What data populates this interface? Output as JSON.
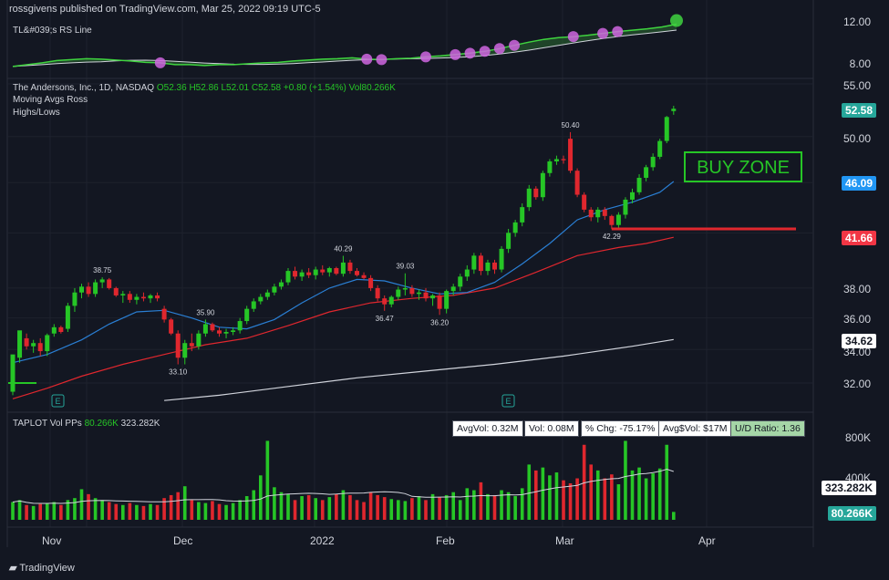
{
  "publish_line": "rossgivens published on TradingView.com, Mar 25, 2022 09:19 UTC-5",
  "rs_pane": {
    "label": "TL&#039;s RS Line",
    "axis_ticks": [
      "12.00",
      "8.00"
    ]
  },
  "main_pane": {
    "symbol_line": "The Andersons, Inc., 1D, NASDAQ",
    "ohlc": {
      "o": "O52.36",
      "h": "H52.86",
      "l": "L52.01",
      "c": "C52.58",
      "chg": "+0.80 (+1.54%)",
      "vol": "Vol80.266K"
    },
    "indicator1": "Moving Avgs Ross",
    "indicator2": "Highs/Lows",
    "axis_ticks": [
      "55.00",
      "50.00",
      "38.00",
      "36.00",
      "34.00",
      "32.00"
    ],
    "buy_zone_label": "BUY ZONE",
    "price_badges": [
      {
        "value": "52.58",
        "bg": "#26a69a",
        "fg": "#ffffff"
      },
      {
        "value": "46.09",
        "bg": "#2196f3",
        "fg": "#ffffff"
      },
      {
        "value": "41.66",
        "bg": "#f23645",
        "fg": "#ffffff"
      },
      {
        "value": "34.62",
        "bg": "#ffffff",
        "fg": "#131722"
      }
    ],
    "annotations": [
      "38.75",
      "35.90",
      "33.10",
      "40.29",
      "39.03",
      "36.47",
      "36.20",
      "50.40",
      "42.29"
    ]
  },
  "volume_pane": {
    "label": "TAPLOT Vol PPs",
    "vol_value": "80.266K",
    "avg_value": "323.282K",
    "stats": [
      "AvgVol: 0.32M",
      "Vol: 0.08M",
      "% Chg: -75.17%",
      "Avg$Vol: $17M",
      "U/D Ratio: 1.36"
    ],
    "axis_ticks": [
      "800K",
      "400K"
    ],
    "badges": [
      {
        "value": "323.282K",
        "bg": "#ffffff",
        "fg": "#131722"
      },
      {
        "value": "80.266K",
        "bg": "#26a69a",
        "fg": "#ffffff"
      }
    ]
  },
  "x_axis": [
    "Nov",
    "Dec",
    "2022",
    "Feb",
    "Mar",
    "Apr"
  ],
  "footer": "TradingView",
  "colors": {
    "up": "#26c626",
    "down": "#e0272e",
    "ma_short": "#2a7fd4",
    "ma_long": "#e0272e",
    "ma_200": "#d1d4dc",
    "rs": "#3fd43f",
    "rs_dot": "#d066e0",
    "bg": "#131722"
  },
  "chart_data": {
    "type": "candlestick",
    "ylim": [
      30.5,
      55.5
    ],
    "y_scale": "log",
    "buy_zone_line": 42.3,
    "candles": [
      [
        31.5,
        31.3,
        32.8,
        33.7
      ],
      [
        33.5,
        33.2,
        34.8,
        35.2
      ],
      [
        34.7,
        34.0,
        35.0,
        34.2
      ],
      [
        34.2,
        33.8,
        34.6,
        34.4
      ],
      [
        34.4,
        33.6,
        34.7,
        33.9
      ],
      [
        33.9,
        33.6,
        35.0,
        34.9
      ],
      [
        35.0,
        34.8,
        35.6,
        35.4
      ],
      [
        35.4,
        35.0,
        35.5,
        35.1
      ],
      [
        35.3,
        35.1,
        37.0,
        36.8
      ],
      [
        36.8,
        36.4,
        38.0,
        37.7
      ],
      [
        37.7,
        37.3,
        38.3,
        38.1
      ],
      [
        38.1,
        37.4,
        38.4,
        37.6
      ],
      [
        37.6,
        37.4,
        38.6,
        38.4
      ],
      [
        38.4,
        38.0,
        38.75,
        38.6
      ],
      [
        38.6,
        37.9,
        38.7,
        38.0
      ],
      [
        38.0,
        37.4,
        38.1,
        37.5
      ],
      [
        37.5,
        37.0,
        37.8,
        37.6
      ],
      [
        37.6,
        37.0,
        37.8,
        37.2
      ],
      [
        37.2,
        36.9,
        37.6,
        37.4
      ],
      [
        37.4,
        37.1,
        37.7,
        37.3
      ],
      [
        37.3,
        37.0,
        37.6,
        37.5
      ],
      [
        37.5,
        37.1,
        37.7,
        37.3
      ],
      [
        36.6,
        35.7,
        36.8,
        35.9
      ],
      [
        35.9,
        34.9,
        36.0,
        35.0
      ],
      [
        35.0,
        33.1,
        35.2,
        33.5
      ],
      [
        33.5,
        33.1,
        34.6,
        34.4
      ],
      [
        34.4,
        33.9,
        35.0,
        34.2
      ],
      [
        34.2,
        34.0,
        35.2,
        35.0
      ],
      [
        35.0,
        34.8,
        35.9,
        35.6
      ],
      [
        35.6,
        35.1,
        35.7,
        35.2
      ],
      [
        35.2,
        34.8,
        35.4,
        35.0
      ],
      [
        35.0,
        34.7,
        35.3,
        35.1
      ],
      [
        35.1,
        34.9,
        35.4,
        35.2
      ],
      [
        35.2,
        35.0,
        36.0,
        35.8
      ],
      [
        35.8,
        35.6,
        36.8,
        36.6
      ],
      [
        36.6,
        36.4,
        37.3,
        37.1
      ],
      [
        37.1,
        36.9,
        37.6,
        37.4
      ],
      [
        37.4,
        37.2,
        37.9,
        37.7
      ],
      [
        37.7,
        37.5,
        38.3,
        38.1
      ],
      [
        38.1,
        37.9,
        38.6,
        38.4
      ],
      [
        38.4,
        38.2,
        39.4,
        39.2
      ],
      [
        39.2,
        38.6,
        39.5,
        38.8
      ],
      [
        38.8,
        38.5,
        39.3,
        39.1
      ],
      [
        39.1,
        38.7,
        39.4,
        38.9
      ],
      [
        38.9,
        38.6,
        39.5,
        39.3
      ],
      [
        39.3,
        38.9,
        39.6,
        39.1
      ],
      [
        39.1,
        38.8,
        39.5,
        39.4
      ],
      [
        39.4,
        38.9,
        39.5,
        39.0
      ],
      [
        39.0,
        38.8,
        40.29,
        39.8
      ],
      [
        39.8,
        39.0,
        40.0,
        39.2
      ],
      [
        39.2,
        38.8,
        39.4,
        38.9
      ],
      [
        38.9,
        38.6,
        39.1,
        38.7
      ],
      [
        38.7,
        37.8,
        38.9,
        38.0
      ],
      [
        38.0,
        37.1,
        38.2,
        37.3
      ],
      [
        37.3,
        36.47,
        37.5,
        36.9
      ],
      [
        36.9,
        36.7,
        37.5,
        37.4
      ],
      [
        37.4,
        37.2,
        38.1,
        37.9
      ],
      [
        37.9,
        37.5,
        39.03,
        38.0
      ],
      [
        38.0,
        37.4,
        38.2,
        37.6
      ],
      [
        37.6,
        37.2,
        37.9,
        37.7
      ],
      [
        37.7,
        37.1,
        38.0,
        37.3
      ],
      [
        37.3,
        36.8,
        37.6,
        37.5
      ],
      [
        37.5,
        36.2,
        37.7,
        36.6
      ],
      [
        36.6,
        36.3,
        37.9,
        37.8
      ],
      [
        37.8,
        37.5,
        38.3,
        38.1
      ],
      [
        38.1,
        37.8,
        39.0,
        38.8
      ],
      [
        38.8,
        38.5,
        39.6,
        39.3
      ],
      [
        39.3,
        39.0,
        40.5,
        40.3
      ],
      [
        40.3,
        38.9,
        40.5,
        39.2
      ],
      [
        39.2,
        38.9,
        40.0,
        39.8
      ],
      [
        39.8,
        39.0,
        40.0,
        39.3
      ],
      [
        39.3,
        39.1,
        41.0,
        40.8
      ],
      [
        40.8,
        40.5,
        42.3,
        42.0
      ],
      [
        42.0,
        41.7,
        43.0,
        42.8
      ],
      [
        42.8,
        42.5,
        44.3,
        44.0
      ],
      [
        44.0,
        43.7,
        45.8,
        45.5
      ],
      [
        45.5,
        44.6,
        45.7,
        44.8
      ],
      [
        44.8,
        44.5,
        47.0,
        46.8
      ],
      [
        46.8,
        46.5,
        48.0,
        47.8
      ],
      [
        47.8,
        47.5,
        48.3,
        48.0
      ],
      [
        48.0,
        47.6,
        48.3,
        47.9
      ],
      [
        49.8,
        46.8,
        50.4,
        47.0
      ],
      [
        47.0,
        44.8,
        47.2,
        45.0
      ],
      [
        45.0,
        43.6,
        45.2,
        43.8
      ],
      [
        43.8,
        42.9,
        44.0,
        43.2
      ],
      [
        43.2,
        42.8,
        44.0,
        43.8
      ],
      [
        43.8,
        43.0,
        44.0,
        43.3
      ],
      [
        43.3,
        42.29,
        43.4,
        42.6
      ],
      [
        42.6,
        42.3,
        43.6,
        43.4
      ],
      [
        43.4,
        43.1,
        44.8,
        44.6
      ],
      [
        44.6,
        44.3,
        45.5,
        45.2
      ],
      [
        45.2,
        45.0,
        46.7,
        46.4
      ],
      [
        46.4,
        46.1,
        47.5,
        47.3
      ],
      [
        47.3,
        47.0,
        48.5,
        48.2
      ],
      [
        48.2,
        48.0,
        49.8,
        49.6
      ],
      [
        49.6,
        49.4,
        51.9,
        51.8
      ],
      [
        52.36,
        52.01,
        52.86,
        52.58
      ]
    ],
    "ma_short": [
      [
        0,
        33.2
      ],
      [
        5,
        33.7
      ],
      [
        10,
        34.6
      ],
      [
        14,
        35.6
      ],
      [
        18,
        36.4
      ],
      [
        22,
        36.5
      ],
      [
        26,
        36.0
      ],
      [
        30,
        35.4
      ],
      [
        34,
        35.3
      ],
      [
        38,
        35.9
      ],
      [
        42,
        37.0
      ],
      [
        46,
        38.0
      ],
      [
        50,
        38.6
      ],
      [
        54,
        38.5
      ],
      [
        58,
        38.0
      ],
      [
        62,
        37.6
      ],
      [
        66,
        37.7
      ],
      [
        70,
        38.4
      ],
      [
        74,
        39.7
      ],
      [
        78,
        41.2
      ],
      [
        82,
        43.0
      ],
      [
        86,
        43.8
      ],
      [
        90,
        44.4
      ],
      [
        94,
        45.2
      ],
      [
        96,
        46.09
      ]
    ],
    "ma_long": [
      [
        0,
        31.1
      ],
      [
        5,
        31.7
      ],
      [
        10,
        32.4
      ],
      [
        16,
        33.1
      ],
      [
        22,
        33.7
      ],
      [
        28,
        34.3
      ],
      [
        34,
        34.7
      ],
      [
        40,
        35.5
      ],
      [
        46,
        36.4
      ],
      [
        52,
        37.0
      ],
      [
        58,
        37.3
      ],
      [
        64,
        37.5
      ],
      [
        70,
        38.0
      ],
      [
        76,
        39.1
      ],
      [
        82,
        40.3
      ],
      [
        88,
        40.9
      ],
      [
        92,
        41.2
      ],
      [
        96,
        41.66
      ]
    ],
    "ma_200": [
      [
        22,
        31.0
      ],
      [
        30,
        31.3
      ],
      [
        40,
        31.8
      ],
      [
        50,
        32.3
      ],
      [
        60,
        32.7
      ],
      [
        70,
        33.1
      ],
      [
        80,
        33.6
      ],
      [
        90,
        34.2
      ],
      [
        96,
        34.62
      ]
    ],
    "rs_line": [
      0.74,
      0.78,
      0.82,
      0.87,
      0.89,
      0.91,
      0.9,
      0.88,
      0.86,
      0.83,
      0.82,
      0.78,
      0.78,
      0.76,
      0.78,
      0.78,
      0.8,
      0.82,
      0.83,
      0.86,
      0.88,
      0.9,
      0.91,
      0.93,
      0.9,
      0.89,
      0.91,
      0.92,
      0.95,
      0.97,
      1.0,
      1.03,
      1.07,
      1.13,
      1.2,
      1.27,
      1.33,
      1.37,
      1.39,
      1.42,
      1.46,
      1.5,
      1.53,
      1.56,
      1.6,
      1.66
    ],
    "volume_k": [
      180,
      200,
      150,
      140,
      160,
      170,
      180,
      150,
      200,
      220,
      310,
      260,
      220,
      200,
      180,
      160,
      150,
      170,
      150,
      140,
      160,
      150,
      220,
      250,
      280,
      340,
      200,
      180,
      170,
      190,
      160,
      150,
      170,
      200,
      240,
      300,
      450,
      800,
      330,
      280,
      260,
      200,
      240,
      250,
      220,
      200,
      230,
      260,
      300,
      250,
      200,
      180,
      280,
      250,
      230,
      210,
      200,
      190,
      220,
      240,
      200,
      260,
      230,
      250,
      280,
      200,
      320,
      300,
      380,
      260,
      250,
      300,
      280,
      240,
      320,
      560,
      500,
      530,
      450,
      480,
      400,
      370,
      420,
      760,
      560,
      500,
      420,
      460,
      360,
      800,
      500,
      530,
      420,
      470,
      520,
      760,
      80
    ],
    "volume_avg_k": 323.282
  }
}
